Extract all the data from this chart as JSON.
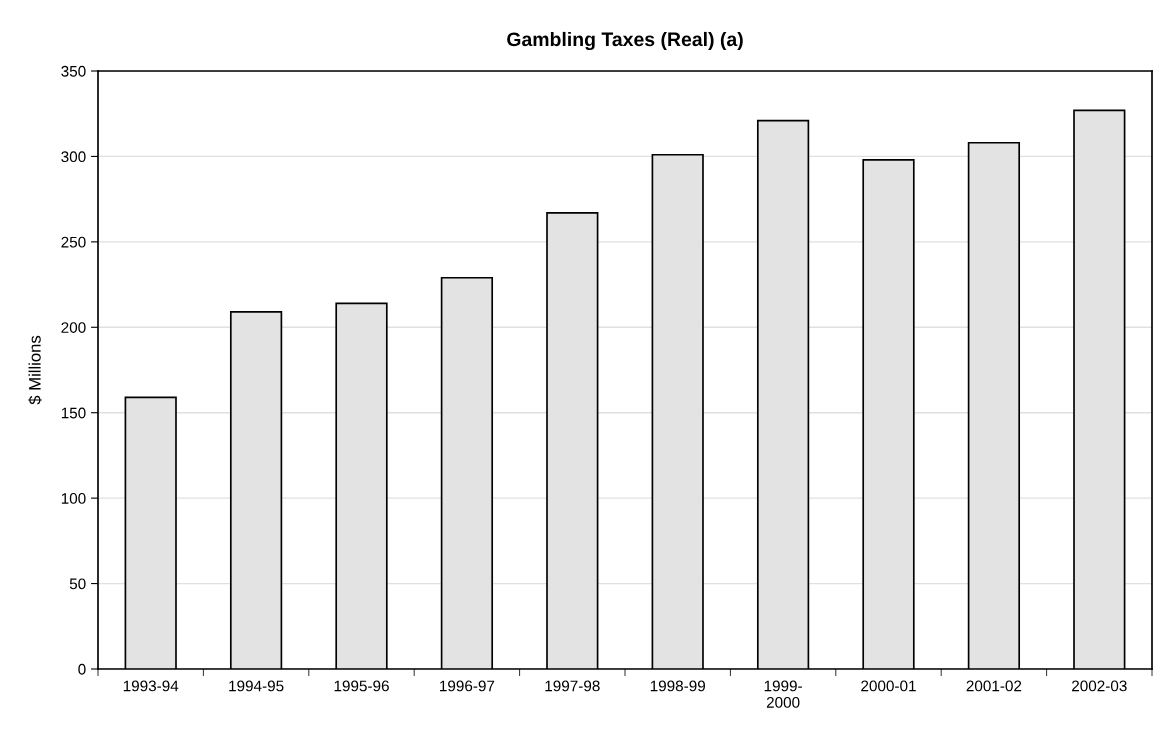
{
  "chart_data": {
    "type": "bar",
    "title": "Gambling Taxes (Real) (a)",
    "ylabel": "$ Millions",
    "categories": [
      "1993-94",
      "1994-95",
      "1995-96",
      "1996-97",
      "1997-98",
      "1998-99",
      "1999-2000",
      "2000-01",
      "2001-02",
      "2002-03"
    ],
    "values": [
      159,
      209,
      214,
      229,
      267,
      301,
      321,
      298,
      308,
      327
    ],
    "color": "#e3e3e3",
    "ylim": [
      0,
      350
    ],
    "yticks": [
      0,
      50,
      100,
      150,
      200,
      250,
      300,
      350
    ],
    "grid": "y",
    "legend": false
  }
}
